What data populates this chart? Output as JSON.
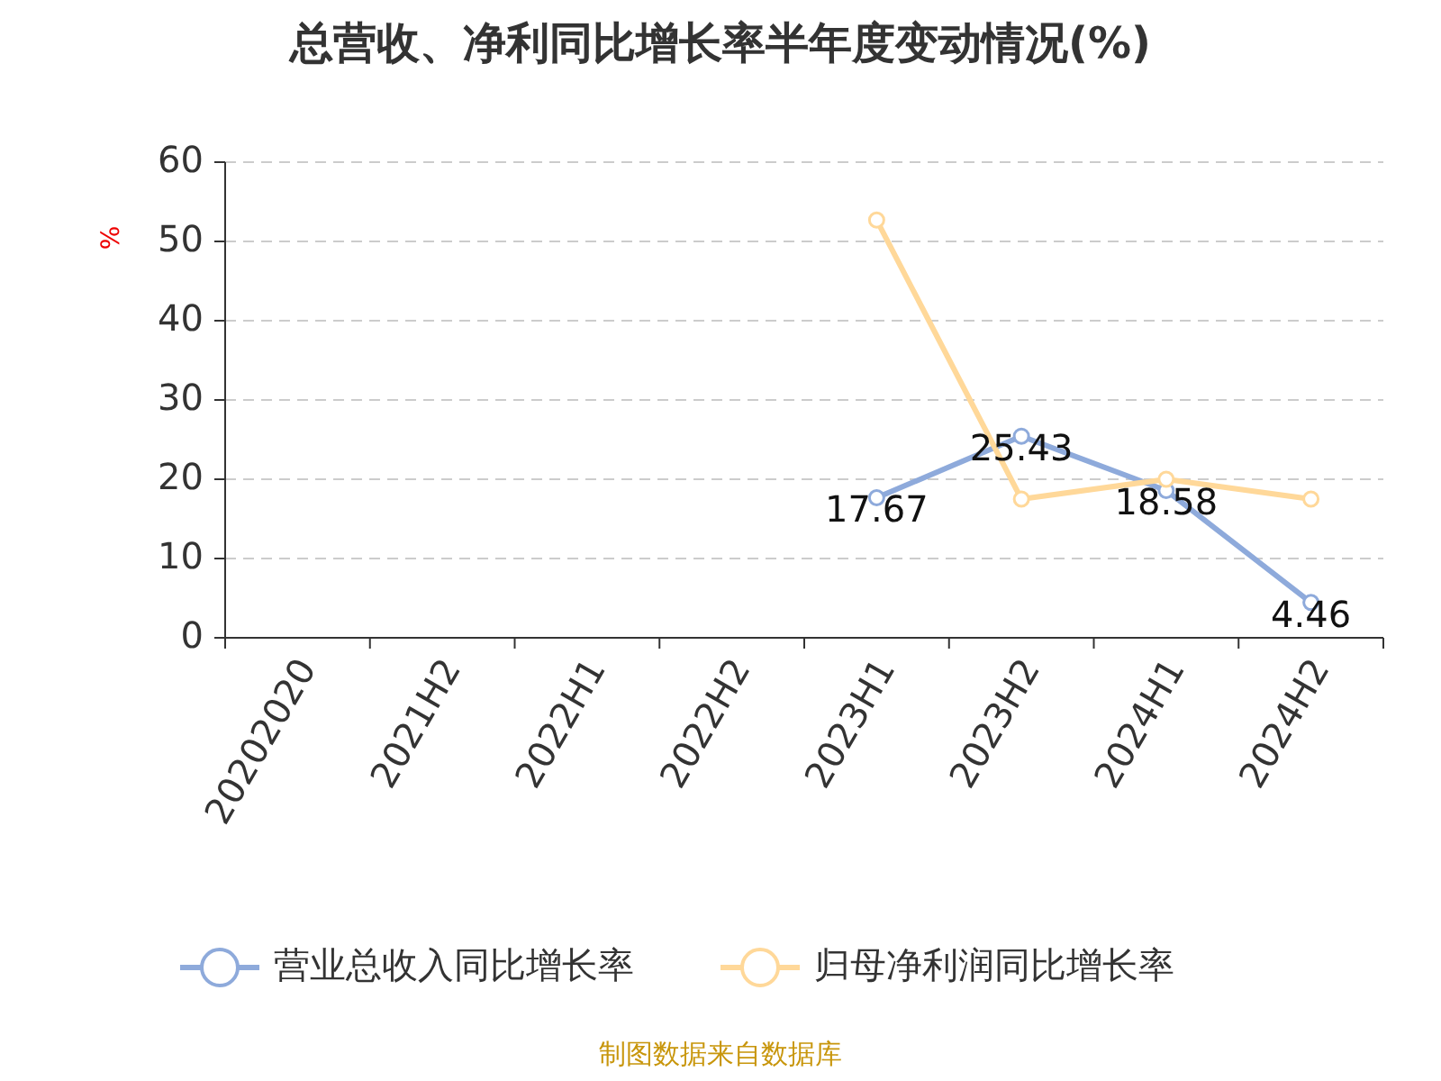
{
  "chart_data": {
    "type": "line",
    "title": "总营收、净利同比增长率半年度变动情况(%)",
    "ylabel": "%",
    "categories": [
      "20202020",
      "2021H2",
      "2022H1",
      "2022H2",
      "2023H1",
      "2023H2",
      "2024H1",
      "2024H2"
    ],
    "series": [
      {
        "name": "营业总收入同比增长率",
        "color": "#8eaadb",
        "values": [
          null,
          null,
          null,
          null,
          17.67,
          25.43,
          18.58,
          4.46
        ],
        "value_labels": [
          null,
          null,
          null,
          null,
          "17.67",
          "25.43",
          "18.58",
          "4.46"
        ]
      },
      {
        "name": "归母净利润同比增长率",
        "color": "#ffd899",
        "values": [
          null,
          null,
          null,
          null,
          52.7,
          17.5,
          20,
          17.5
        ]
      }
    ],
    "ylim": [
      0,
      60
    ],
    "yticks": [
      0,
      10,
      20,
      30,
      40,
      50,
      60
    ],
    "grid": "y",
    "legend": "bottom",
    "marker": "circle",
    "line_style": "solid",
    "annotations": [
      "制图数据来自数据库"
    ]
  }
}
